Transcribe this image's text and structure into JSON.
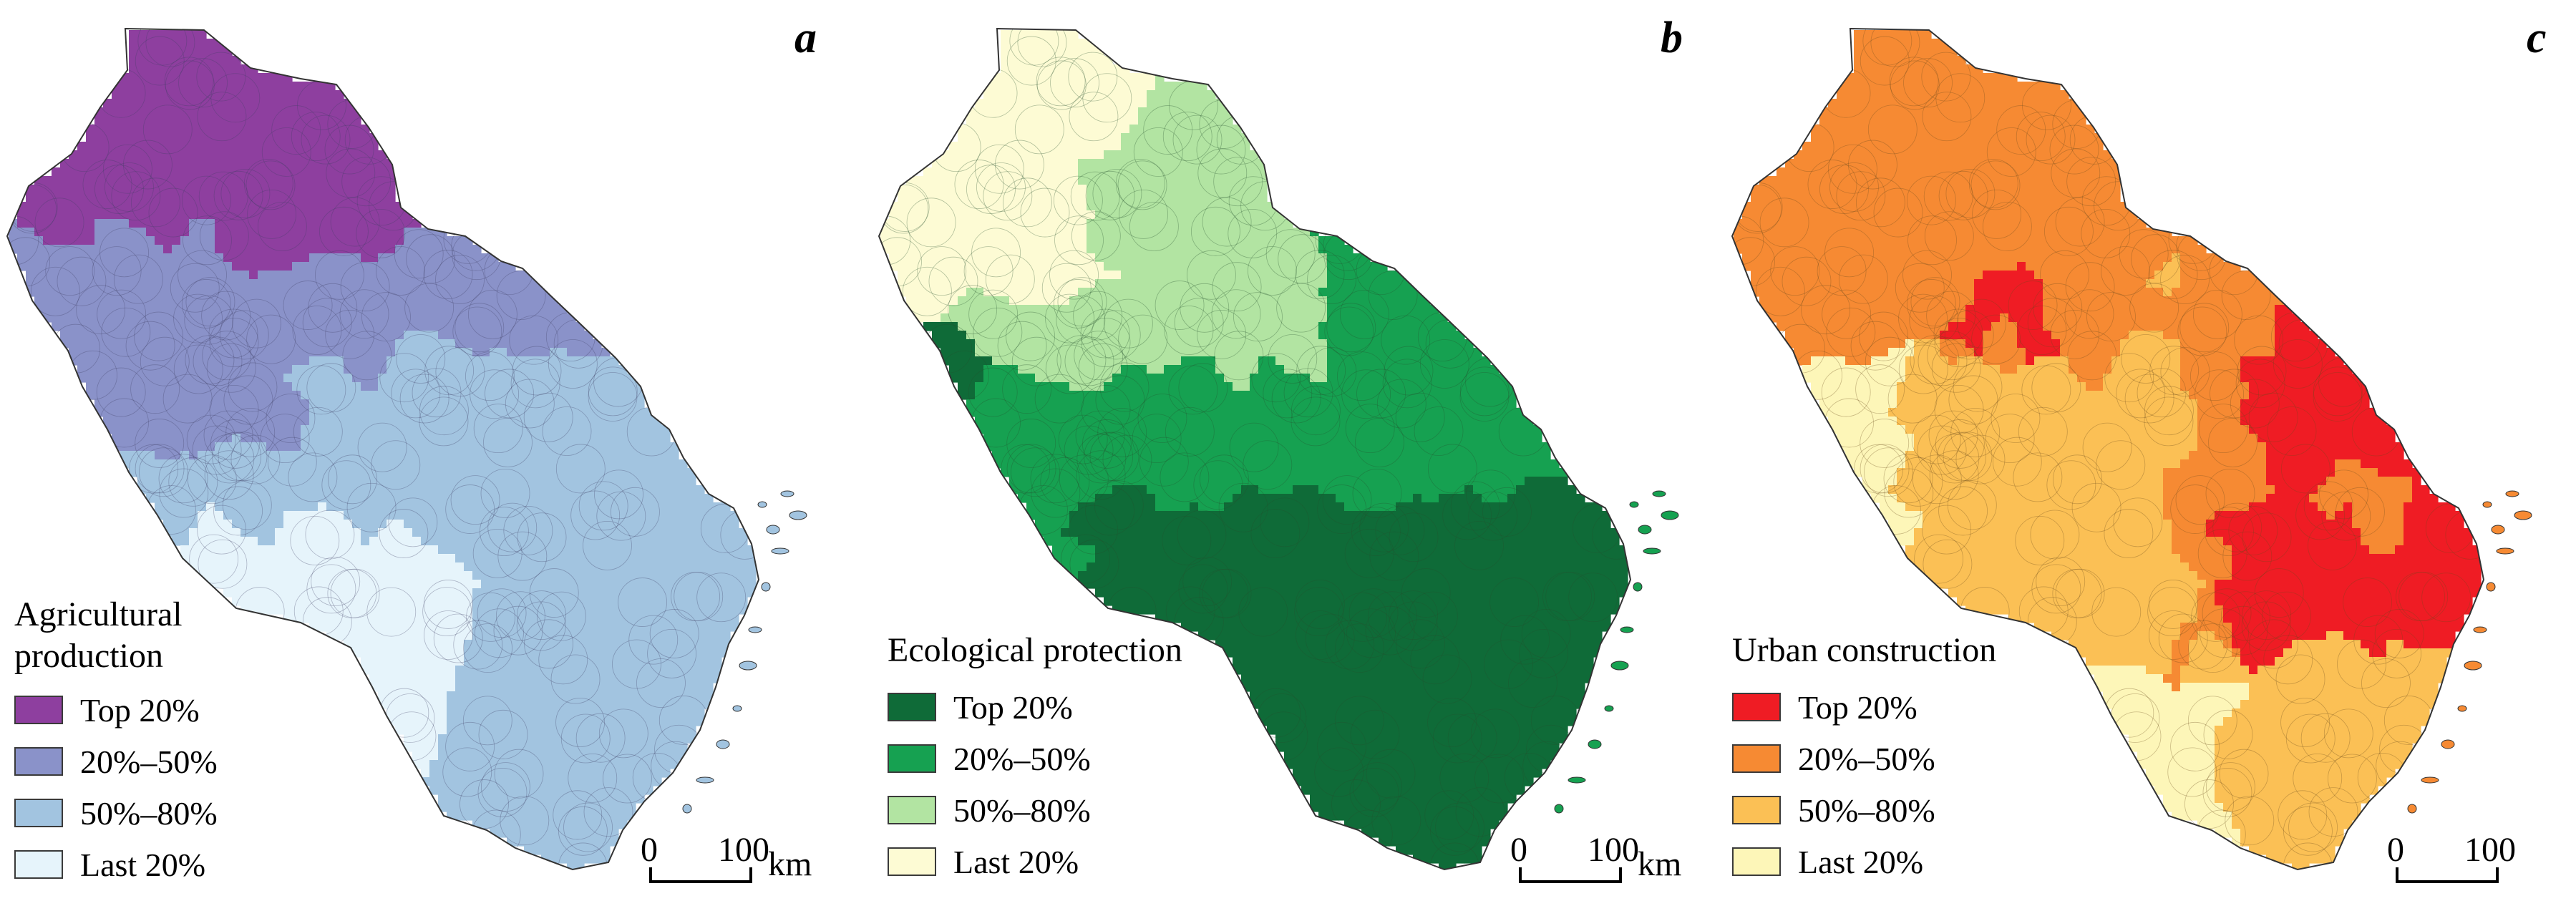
{
  "panels": [
    {
      "letter": "a",
      "legend_title": "Agricultural\nproduction",
      "legend": [
        {
          "label": "Top 20%",
          "color": "#8e3f9f"
        },
        {
          "label": "20%–50%",
          "color": "#8a92c9"
        },
        {
          "label": "50%–80%",
          "color": "#a2c4e0"
        },
        {
          "label": "Last 20%",
          "color": "#e6f4fb"
        }
      ]
    },
    {
      "letter": "b",
      "legend_title": "Ecological protection",
      "legend": [
        {
          "label": "Top 20%",
          "color": "#0f6b38"
        },
        {
          "label": "20%–50%",
          "color": "#16a151"
        },
        {
          "label": "50%–80%",
          "color": "#b2e4a2"
        },
        {
          "label": "Last 20%",
          "color": "#fdfbd4"
        }
      ]
    },
    {
      "letter": "c",
      "legend_title": "Urban construction",
      "legend": [
        {
          "label": "Top 20%",
          "color": "#ef1c24"
        },
        {
          "label": "20%–50%",
          "color": "#f68a33"
        },
        {
          "label": "50%–80%",
          "color": "#fbc055"
        },
        {
          "label": "Last 20%",
          "color": "#fdf6b8"
        }
      ]
    }
  ],
  "scalebar": {
    "zero": "0",
    "hundred": "100",
    "unit": "km"
  }
}
